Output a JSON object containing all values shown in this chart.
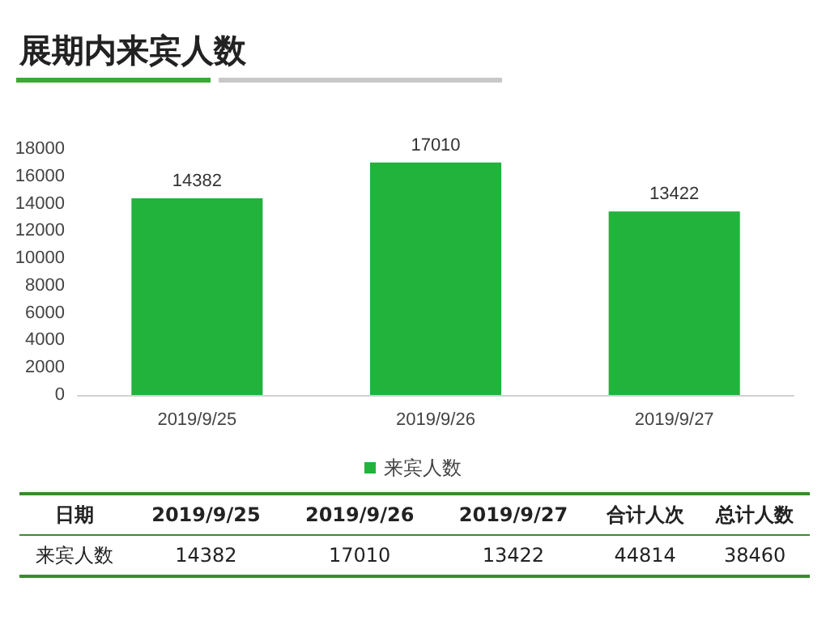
{
  "chart_data": {
    "type": "bar",
    "title": "展期内来宾人数",
    "categories": [
      "2019/9/25",
      "2019/9/26",
      "2019/9/27"
    ],
    "series": [
      {
        "name": "来宾人数",
        "color": "#21b33c",
        "values": [
          14382,
          17010,
          13422
        ],
        "value_labels": [
          "14382",
          "17010",
          "13422"
        ]
      }
    ],
    "ylim": [
      0,
      18000
    ],
    "yticks": [
      0,
      2000,
      4000,
      6000,
      8000,
      10000,
      12000,
      14000,
      16000,
      18000
    ],
    "grid": false,
    "legend": "bottom",
    "annotations": [
      "日期",
      "合计人次",
      "44814",
      "总计人数",
      "38460"
    ]
  }
}
